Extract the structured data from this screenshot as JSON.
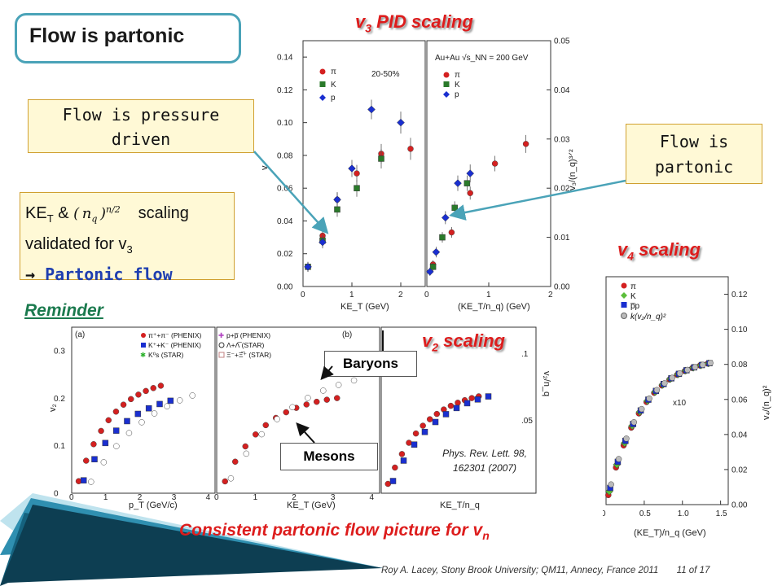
{
  "slide": {
    "title": "Flow is partonic",
    "reminder": "Reminder",
    "conclusion_main": "Consistent partonic flow picture for v",
    "conclusion_sub": "n",
    "footer": "Roy A. Lacey, Stony Brook University; QM11, Annecy, France 2011",
    "page": "11 of 17"
  },
  "callouts": {
    "pressure": "Flow is pressure driven",
    "partonic": "Flow is partonic",
    "scaling_ke": "KE",
    "scaling_ke_sub": "T",
    "scaling_amp": "&",
    "scaling_word": "scaling",
    "scaling_line2": "validated for v",
    "scaling_line2_sub": "3",
    "scaling_line3_arrow": "→",
    "scaling_line3_text": "Partonic flow"
  },
  "headings": {
    "v3_main": "v",
    "v3_sub": "3",
    "v3_rest": " PID scaling",
    "v4_main": "v",
    "v4_sub": "4",
    "v4_rest": " scaling",
    "v2_main": "v",
    "v2_sub": "2",
    "v2_rest": " scaling"
  },
  "labels": {
    "baryons": "Baryons",
    "mesons": "Mesons",
    "reference_line1": "Phys. Rev. Lett. 98,",
    "reference_line2": "162301 (2007)"
  },
  "colors": {
    "accent_red": "#dd1c1c",
    "teal": "#4aa3b8",
    "reminder_green": "#1b7a4e",
    "partonic_blue": "#1f3fb0",
    "pion": "#d42020",
    "kaon": "#2a7a2a",
    "proton": "#1a2fd0"
  },
  "chart_data": [
    {
      "type": "scatter",
      "panel": "v3 vs KE_T",
      "xlabel": "KE_T (GeV)",
      "ylabel": "v3",
      "xlim": [
        0,
        2.5
      ],
      "ylim": [
        0,
        0.15
      ],
      "xticks": [
        "0",
        "1",
        "2"
      ],
      "yticks": [
        "0.00",
        "0.02",
        "0.04",
        "0.06",
        "0.08",
        "0.10",
        "0.12",
        "0.14"
      ],
      "annotation": "20-50%",
      "series": [
        {
          "name": "π",
          "x": [
            0.1,
            0.4,
            0.7,
            1.1,
            1.6,
            2.2
          ],
          "y": [
            0.012,
            0.031,
            0.053,
            0.069,
            0.081,
            0.084
          ]
        },
        {
          "name": "K",
          "x": [
            0.1,
            0.4,
            0.7,
            1.1,
            1.6
          ],
          "y": [
            0.012,
            0.028,
            0.047,
            0.06,
            0.078
          ]
        },
        {
          "name": "p",
          "x": [
            0.1,
            0.4,
            0.7,
            1.0,
            1.4,
            2.0
          ],
          "y": [
            0.012,
            0.027,
            0.053,
            0.072,
            0.108,
            0.1
          ]
        }
      ]
    },
    {
      "type": "scatter",
      "panel": "v3/(n_q)^{3/2} vs KE_T/n_q",
      "xlabel": "(KE_T/n_q) (GeV)",
      "ylabel": "v3/(n_q)^{3/2}",
      "xlim": [
        0,
        2
      ],
      "ylim": [
        0,
        0.05
      ],
      "xticks": [
        "0",
        "1",
        "2"
      ],
      "yticks": [
        "0.00",
        "0.01",
        "0.02",
        "0.03",
        "0.04",
        "0.05"
      ],
      "annotation": "Au+Au √s_NN = 200 GeV",
      "series": [
        {
          "name": "π",
          "x": [
            0.1,
            0.4,
            0.7,
            1.1,
            1.6
          ],
          "y": [
            0.0045,
            0.011,
            0.019,
            0.025,
            0.029
          ]
        },
        {
          "name": "K",
          "x": [
            0.1,
            0.25,
            0.45,
            0.65
          ],
          "y": [
            0.004,
            0.01,
            0.016,
            0.021
          ]
        },
        {
          "name": "p",
          "x": [
            0.05,
            0.15,
            0.3,
            0.5,
            0.7
          ],
          "y": [
            0.003,
            0.007,
            0.014,
            0.021,
            0.023
          ]
        }
      ]
    },
    {
      "type": "scatter",
      "panel": "v2 scaling",
      "xlabel": "p_T (GeV/c)",
      "ylabel": "v2",
      "xticks": [
        "0",
        "1",
        "2",
        "3",
        "4"
      ],
      "yticks": [
        "0",
        "0.1",
        "0.2",
        "0.3"
      ],
      "legend": [
        "π⁺+π⁻ (PHENIX)",
        "K⁺+K⁻ (PHENIX)",
        "K⁰s (STAR)",
        "p+p̅ (PHENIX)",
        "Λ+Λ̅ (STAR)",
        "Ξ⁻+Ξ̅⁺ (STAR)"
      ],
      "panel_labels": [
        "(a)",
        "(b)"
      ],
      "secondary_xlabel": "KE_T (GeV)",
      "tertiary_xlabel": "KE_T/n_q",
      "tertiary_ylabel": "v2/n_q",
      "tertiary_yticks": [
        ".1",
        ".05"
      ]
    },
    {
      "type": "scatter",
      "panel": "v4 scaling",
      "xlabel": "(KE_T)/n_q (GeV)",
      "ylabel": "v4/(n_q)^2",
      "xlim": [
        0,
        1.6
      ],
      "ylim": [
        0,
        0.13
      ],
      "xticks": [
        "0",
        "0.5",
        "1.0",
        "1.5"
      ],
      "yticks": [
        "0.00",
        "0.02",
        "0.04",
        "0.06",
        "0.08",
        "0.10",
        "0.12"
      ],
      "legend": [
        "π",
        "K",
        "p̅p",
        "k(v2/nq)²"
      ],
      "annotation": "x10"
    }
  ]
}
